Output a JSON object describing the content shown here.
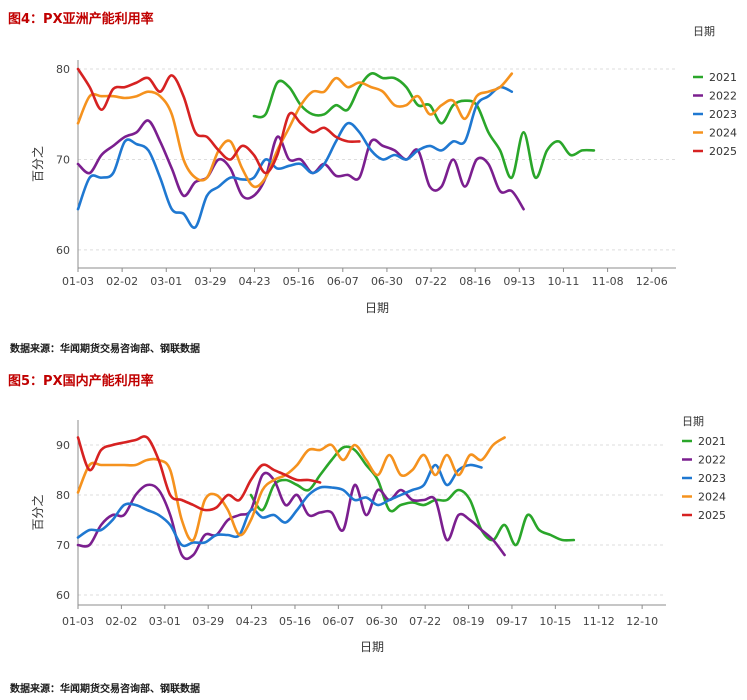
{
  "colors": {
    "2021": "#2aa62a",
    "2022": "#7b1f8f",
    "2023": "#1f78d1",
    "2024": "#f5921e",
    "2025": "#d62222",
    "title": "#c00000",
    "axis": "#8c8c8c",
    "grid": "#dddddd"
  },
  "figures": [
    {
      "title": "图4：PX亚洲产能利用率",
      "source": "数据来源：华闻期货交易咨询部、钢联数据"
    },
    {
      "title": "图5：PX国内产能利用率",
      "source": "数据来源：华闻期货交易咨询部、钢联数据"
    }
  ],
  "chart_data": [
    {
      "type": "line",
      "title": "图4：PX亚洲产能利用率",
      "xlabel": "日期",
      "ylabel": "百分之",
      "legend_title": "日期",
      "legend_position": "right",
      "grid": "horizontal dashed",
      "ylim": [
        58,
        81
      ],
      "yticks": [
        60,
        70,
        80
      ],
      "xticks": [
        "01-03",
        "02-02",
        "03-01",
        "03-29",
        "04-23",
        "05-16",
        "06-07",
        "06-30",
        "07-22",
        "08-16",
        "09-13",
        "10-11",
        "11-08",
        "12-06"
      ],
      "x_week_range": [
        1,
        52
      ],
      "series": [
        {
          "name": "2021",
          "start_week": 16,
          "values": [
            74.8,
            75,
            78.5,
            78,
            76,
            75,
            75,
            76,
            75.5,
            78,
            79.5,
            79,
            79,
            78,
            76,
            76,
            74,
            76,
            76.5,
            76,
            73,
            71,
            68,
            73,
            68,
            71,
            72,
            70.5,
            71,
            71
          ]
        },
        {
          "name": "2022",
          "start_week": 1,
          "values": [
            69.5,
            68.5,
            70.5,
            71.5,
            72.5,
            73,
            74.3,
            72,
            69,
            66,
            67.5,
            68,
            70,
            69,
            66,
            66,
            68,
            72.5,
            70,
            70,
            68.5,
            69.5,
            68.2,
            68.3,
            68,
            72,
            71.5,
            71,
            70,
            71,
            67,
            67,
            70,
            67,
            70,
            69.5,
            66.5,
            66.5,
            64.5
          ]
        },
        {
          "name": "2023",
          "start_week": 1,
          "values": [
            64.5,
            68,
            68,
            68.5,
            72,
            71.7,
            71,
            68,
            64.5,
            64,
            62.5,
            66,
            67,
            68,
            67.8,
            68,
            70,
            69,
            69.3,
            69.5,
            68.5,
            69.5,
            72,
            74,
            73,
            71,
            70,
            70.5,
            70,
            71,
            71.5,
            71,
            72,
            72,
            76,
            77,
            78,
            77.5
          ]
        },
        {
          "name": "2024",
          "start_week": 1,
          "values": [
            74,
            77,
            77,
            77,
            76.8,
            77,
            77.5,
            77,
            75,
            70,
            68,
            68,
            71,
            72,
            69,
            67,
            68,
            71,
            73.5,
            76,
            77.5,
            77.5,
            79,
            78,
            78.5,
            78,
            77.5,
            76,
            76,
            77,
            75,
            76,
            76.5,
            74.5,
            77,
            77.5,
            78,
            79.5
          ]
        },
        {
          "name": "2025",
          "start_week": 1,
          "values": [
            80,
            78,
            75.5,
            77.8,
            78,
            78.5,
            79,
            77.5,
            79.3,
            77,
            73,
            72.5,
            71,
            70,
            71.5,
            70.5,
            68.5,
            70.5,
            75,
            74,
            73,
            73.5,
            72.5,
            72,
            72
          ]
        }
      ]
    },
    {
      "type": "line",
      "title": "图5：PX国内产能利用率",
      "xlabel": "日期",
      "ylabel": "百分之",
      "legend_title": "日期",
      "legend_position": "right",
      "grid": "horizontal dashed",
      "ylim": [
        58,
        95
      ],
      "yticks": [
        60,
        70,
        80,
        90
      ],
      "xticks": [
        "01-03",
        "02-02",
        "03-01",
        "03-29",
        "04-23",
        "05-16",
        "06-07",
        "06-30",
        "07-22",
        "08-19",
        "09-17",
        "10-15",
        "11-12",
        "12-10"
      ],
      "x_week_range": [
        1,
        52
      ],
      "series": [
        {
          "name": "2021",
          "start_week": 16,
          "values": [
            80,
            77,
            82,
            83,
            82,
            81,
            84,
            87,
            89.5,
            89,
            86,
            83,
            77,
            78,
            78.5,
            78,
            79,
            79,
            81,
            79,
            73,
            71,
            74,
            70,
            76,
            73,
            72,
            71,
            71
          ]
        },
        {
          "name": "2022",
          "start_week": 1,
          "values": [
            70,
            70,
            74,
            76,
            76,
            80,
            82,
            81,
            76,
            68,
            68,
            72,
            72,
            75,
            76,
            77,
            84,
            83,
            78,
            80,
            76,
            76.5,
            76.5,
            73,
            82,
            76,
            81,
            79,
            81,
            79,
            79,
            79,
            71,
            76,
            75,
            73,
            71,
            68
          ]
        },
        {
          "name": "2023",
          "start_week": 1,
          "values": [
            71.5,
            73,
            73,
            75,
            78,
            78,
            77,
            76,
            74,
            70,
            70.5,
            70.5,
            72,
            72,
            72,
            77,
            75.5,
            76,
            74.5,
            77,
            80,
            81.5,
            81.5,
            81,
            79,
            79.5,
            78,
            79,
            80,
            81,
            82,
            86,
            82,
            85,
            86,
            85.5
          ]
        },
        {
          "name": "2024",
          "start_week": 1,
          "values": [
            80.5,
            86,
            86,
            86,
            86,
            86,
            87,
            87,
            85,
            75,
            71,
            79,
            80,
            77,
            72,
            75,
            81,
            83,
            84,
            86,
            89,
            89,
            90,
            87,
            90,
            87,
            84,
            88,
            84,
            85,
            88,
            84,
            88,
            84,
            88,
            87,
            90,
            91.5
          ]
        },
        {
          "name": "2025",
          "start_week": 1,
          "values": [
            91.5,
            85,
            89,
            90,
            90.5,
            91,
            91.5,
            87,
            80,
            79,
            78,
            77,
            77.5,
            80,
            79,
            83,
            86,
            85,
            84,
            83,
            83,
            82.5
          ]
        }
      ]
    }
  ]
}
